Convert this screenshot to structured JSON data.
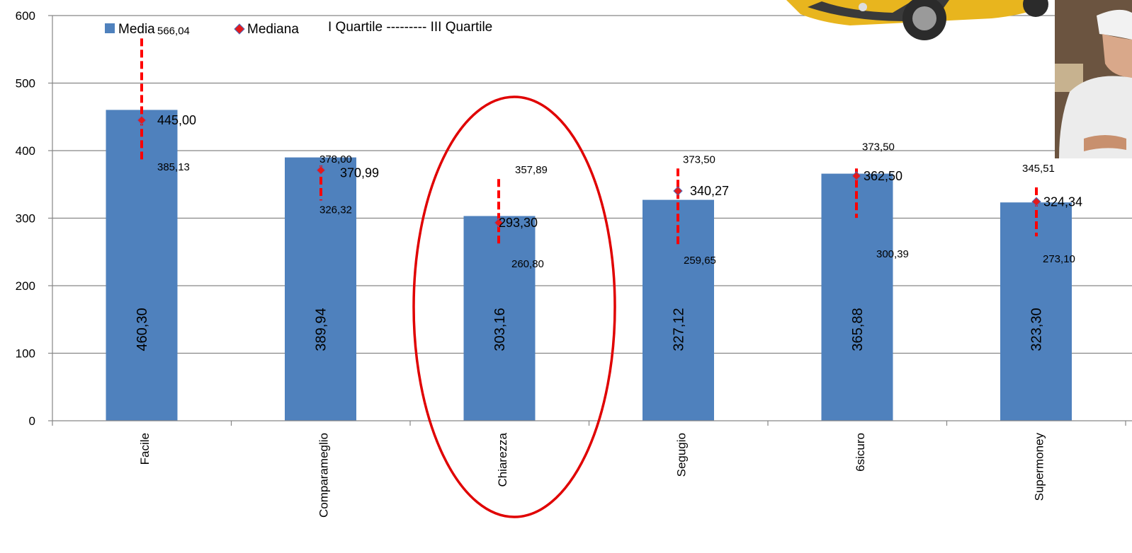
{
  "chart_data": {
    "type": "bar",
    "title": "",
    "xlabel": "",
    "ylabel": "",
    "ylim": [
      0,
      600
    ],
    "yticks": [
      0,
      100,
      200,
      300,
      400,
      500,
      600
    ],
    "grid": true,
    "legend_position": "top",
    "legend": {
      "media": "Media",
      "mediana": "Mediana",
      "quartile": "I Quartile --------- III Quartile"
    },
    "categories": [
      "Facile",
      "Comparameglio",
      "Chiarezza",
      "Segugio",
      "6sicuro",
      "Supermoney"
    ],
    "series": [
      {
        "name": "Media",
        "values": [
          460.3,
          389.94,
          303.16,
          327.12,
          365.88,
          323.3
        ],
        "labels": [
          "460,30",
          "389,94",
          "303,16",
          "327,12",
          "365,88",
          "323,30"
        ]
      },
      {
        "name": "Mediana",
        "values": [
          445.0,
          370.99,
          293.3,
          340.27,
          362.5,
          324.34
        ],
        "labels": [
          "445,00",
          "370,99",
          "293,30",
          "340,27",
          "362,50",
          "324,34"
        ]
      },
      {
        "name": "I Quartile",
        "values": [
          385.13,
          326.32,
          260.8,
          259.65,
          300.39,
          273.1
        ],
        "labels": [
          "385,13",
          "326,32",
          "260,80",
          "259,65",
          "300,39",
          "273,10"
        ]
      },
      {
        "name": "III Quartile",
        "values": [
          566.04,
          378.0,
          357.89,
          373.5,
          373.5,
          345.51
        ],
        "labels": [
          "566,04",
          "378,00",
          "357,89",
          "373,50",
          "373,50",
          "345,51"
        ]
      }
    ],
    "highlighted_category": "Chiarezza",
    "colors": {
      "bar": "#4F81BD",
      "median_marker": "#E31A1C",
      "median_marker_border": "#4F6FBD",
      "quartile_line": "#FF0000",
      "highlight_ellipse": "#E00000",
      "grid": "#868686",
      "car_body": "#E8B51E"
    }
  }
}
